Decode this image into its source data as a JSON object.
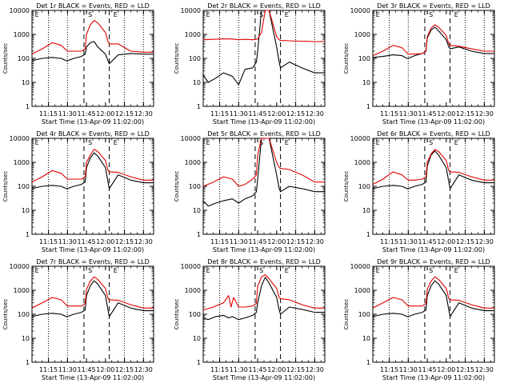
{
  "figure": {
    "x_tick_labels": [
      "11:15",
      "11:30",
      "11:45",
      "12:00",
      "12:15",
      "12:30"
    ],
    "x_label": "Start Time (13-Apr-09 11:02:00)",
    "y_label": "Counts/sec",
    "y_tick_labels": [
      "1",
      "10",
      "100",
      "1000",
      "10000"
    ],
    "marker_labels": [
      "E",
      "S",
      "E"
    ],
    "colors": {
      "events": "#000000",
      "lld": "#e00000"
    }
  },
  "chart_data": [
    {
      "type": "line",
      "title": "Det 1r BLACK = Events, RED = LLD",
      "ylim": [
        1,
        10000
      ],
      "log_y": true,
      "series": [
        {
          "name": "BLACK = Events",
          "color": "#000000",
          "x": [
            "11:02",
            "11:10",
            "11:18",
            "11:25",
            "11:29",
            "11:30",
            "11:35",
            "11:41",
            "11:44",
            "11:45",
            "11:48",
            "11:51",
            "11:54",
            "12:00",
            "12:02",
            "12:03",
            "12:10",
            "12:20",
            "12:30",
            "12:38"
          ],
          "y": [
            80,
            100,
            110,
            100,
            80,
            80,
            100,
            120,
            150,
            300,
            450,
            500,
            300,
            150,
            80,
            60,
            140,
            160,
            150,
            150
          ]
        },
        {
          "name": "RED = LLD",
          "color": "#e00000",
          "x": [
            "11:02",
            "11:10",
            "11:18",
            "11:25",
            "11:30",
            "11:35",
            "11:41",
            "11:44",
            "11:45",
            "11:48",
            "11:51",
            "11:54",
            "12:00",
            "12:02",
            "12:03",
            "12:10",
            "12:20",
            "12:30",
            "12:38"
          ],
          "y": [
            150,
            250,
            450,
            350,
            200,
            200,
            200,
            250,
            1000,
            2500,
            3800,
            3000,
            1200,
            500,
            400,
            400,
            200,
            180,
            180
          ]
        }
      ]
    },
    {
      "type": "line",
      "title": "Det 2r BLACK = Events, RED = LLD",
      "ylim": [
        1,
        10000
      ],
      "log_y": true,
      "series": [
        {
          "name": "BLACK = Events",
          "color": "#000000",
          "x": [
            "11:02",
            "11:06",
            "11:12",
            "11:18",
            "11:25",
            "11:30",
            "11:35",
            "11:41",
            "11:44",
            "11:45",
            "11:48",
            "11:51",
            "11:54",
            "12:00",
            "12:02",
            "12:03",
            "12:10",
            "12:20",
            "12:30",
            "12:38"
          ],
          "y": [
            20,
            10,
            15,
            25,
            18,
            8,
            35,
            40,
            70,
            200,
            10000,
            10000,
            10000,
            300,
            70,
            40,
            70,
            40,
            25,
            25
          ]
        },
        {
          "name": "RED = LLD",
          "color": "#e00000",
          "x": [
            "11:02",
            "11:10",
            "11:18",
            "11:25",
            "11:30",
            "11:35",
            "11:41",
            "11:44",
            "11:45",
            "11:48",
            "11:51",
            "11:54",
            "12:00",
            "12:02",
            "12:03",
            "12:10",
            "12:20",
            "12:30",
            "12:38"
          ],
          "y": [
            600,
            620,
            650,
            640,
            600,
            620,
            600,
            620,
            650,
            1200,
            10000,
            10000,
            800,
            600,
            560,
            540,
            520,
            500,
            500
          ]
        }
      ]
    },
    {
      "type": "line",
      "title": "Det 3r BLACK = Events, RED = LLD",
      "ylim": [
        1,
        10000
      ],
      "log_y": true,
      "series": [
        {
          "name": "BLACK = Events",
          "color": "#000000",
          "x": [
            "11:02",
            "11:10",
            "11:18",
            "11:25",
            "11:29",
            "11:30",
            "11:35",
            "11:41",
            "11:44",
            "11:45",
            "11:48",
            "11:51",
            "11:54",
            "12:00",
            "12:02",
            "12:03",
            "12:10",
            "12:20",
            "12:30",
            "12:38"
          ],
          "y": [
            110,
            120,
            140,
            130,
            100,
            100,
            130,
            160,
            200,
            700,
            1500,
            2000,
            1400,
            600,
            300,
            250,
            300,
            200,
            160,
            160
          ]
        },
        {
          "name": "RED = LLD",
          "color": "#e00000",
          "x": [
            "11:02",
            "11:10",
            "11:18",
            "11:25",
            "11:30",
            "11:35",
            "11:41",
            "11:44",
            "11:45",
            "11:48",
            "11:51",
            "11:54",
            "12:00",
            "12:02",
            "12:03",
            "12:10",
            "12:20",
            "12:30",
            "12:38"
          ],
          "y": [
            130,
            200,
            350,
            280,
            150,
            150,
            160,
            200,
            800,
            1800,
            2500,
            2000,
            900,
            400,
            350,
            320,
            250,
            200,
            200
          ]
        }
      ]
    },
    {
      "type": "line",
      "title": "Det 4r BLACK = Events, RED = LLD",
      "ylim": [
        1,
        10000
      ],
      "log_y": true,
      "series": [
        {
          "name": "BLACK = Events",
          "color": "#000000",
          "x": [
            "11:02",
            "11:10",
            "11:18",
            "11:25",
            "11:29",
            "11:30",
            "11:35",
            "11:41",
            "11:44",
            "11:45",
            "11:48",
            "11:51",
            "11:54",
            "12:00",
            "12:02",
            "12:03",
            "12:10",
            "12:20",
            "12:30",
            "12:38"
          ],
          "y": [
            80,
            100,
            110,
            100,
            80,
            80,
            100,
            120,
            150,
            600,
            1500,
            2500,
            1800,
            600,
            150,
            80,
            300,
            180,
            140,
            140
          ]
        },
        {
          "name": "RED = LLD",
          "color": "#e00000",
          "x": [
            "11:02",
            "11:10",
            "11:18",
            "11:25",
            "11:30",
            "11:35",
            "11:41",
            "11:44",
            "11:45",
            "11:48",
            "11:51",
            "11:54",
            "12:00",
            "12:02",
            "12:03",
            "12:10",
            "12:20",
            "12:30",
            "12:38"
          ],
          "y": [
            150,
            250,
            450,
            350,
            200,
            200,
            200,
            250,
            1000,
            2000,
            3500,
            2800,
            1200,
            450,
            400,
            380,
            250,
            180,
            180
          ]
        }
      ]
    },
    {
      "type": "line",
      "title": "Det 5r BLACK = Events, RED = LLD",
      "ylim": [
        1,
        10000
      ],
      "log_y": true,
      "series": [
        {
          "name": "BLACK = Events",
          "color": "#000000",
          "x": [
            "11:02",
            "11:06",
            "11:12",
            "11:18",
            "11:25",
            "11:30",
            "11:35",
            "11:41",
            "11:44",
            "11:45",
            "11:48",
            "11:51",
            "11:54",
            "12:00",
            "12:02",
            "12:03",
            "12:10",
            "12:20",
            "12:30",
            "12:38"
          ],
          "y": [
            25,
            15,
            20,
            25,
            30,
            20,
            30,
            40,
            60,
            200,
            10000,
            10000,
            10000,
            300,
            80,
            60,
            100,
            80,
            60,
            60
          ]
        },
        {
          "name": "RED = LLD",
          "color": "#e00000",
          "x": [
            "11:02",
            "11:10",
            "11:18",
            "11:25",
            "11:30",
            "11:35",
            "11:41",
            "11:44",
            "11:45",
            "11:48",
            "11:51",
            "11:54",
            "12:00",
            "12:02",
            "12:03",
            "12:10",
            "12:20",
            "12:30",
            "12:38"
          ],
          "y": [
            100,
            150,
            250,
            200,
            100,
            120,
            200,
            300,
            2000,
            10000,
            10000,
            10000,
            1000,
            600,
            560,
            500,
            300,
            150,
            150
          ]
        }
      ]
    },
    {
      "type": "line",
      "title": "Det 6r BLACK = Events, RED = LLD",
      "ylim": [
        1,
        10000
      ],
      "log_y": true,
      "series": [
        {
          "name": "BLACK = Events",
          "color": "#000000",
          "x": [
            "11:02",
            "11:10",
            "11:18",
            "11:25",
            "11:29",
            "11:30",
            "11:35",
            "11:41",
            "11:44",
            "11:45",
            "11:48",
            "11:51",
            "11:54",
            "12:00",
            "12:02",
            "12:03",
            "12:10",
            "12:20",
            "12:30",
            "12:38"
          ],
          "y": [
            80,
            100,
            110,
            100,
            80,
            80,
            100,
            120,
            150,
            700,
            2000,
            3000,
            2000,
            600,
            150,
            80,
            300,
            180,
            140,
            140
          ]
        },
        {
          "name": "RED = LLD",
          "color": "#e00000",
          "x": [
            "11:02",
            "11:10",
            "11:18",
            "11:25",
            "11:30",
            "11:35",
            "11:41",
            "11:44",
            "11:45",
            "11:48",
            "11:51",
            "11:54",
            "12:00",
            "12:02",
            "12:03",
            "12:10",
            "12:20",
            "12:30",
            "12:38"
          ],
          "y": [
            120,
            200,
            400,
            300,
            180,
            180,
            200,
            250,
            1000,
            2200,
            3500,
            2800,
            1200,
            450,
            400,
            380,
            250,
            180,
            180
          ]
        }
      ]
    },
    {
      "type": "line",
      "title": "Det 7r BLACK = Events, RED = LLD",
      "ylim": [
        1,
        10000
      ],
      "log_y": true,
      "series": [
        {
          "name": "BLACK = Events",
          "color": "#000000",
          "x": [
            "11:02",
            "11:10",
            "11:18",
            "11:25",
            "11:29",
            "11:30",
            "11:35",
            "11:41",
            "11:44",
            "11:45",
            "11:48",
            "11:51",
            "11:54",
            "12:00",
            "12:02",
            "12:03",
            "12:10",
            "12:20",
            "12:30",
            "12:38"
          ],
          "y": [
            80,
            100,
            110,
            100,
            80,
            80,
            100,
            120,
            150,
            600,
            1500,
            2500,
            1800,
            600,
            150,
            80,
            300,
            180,
            140,
            140
          ]
        },
        {
          "name": "RED = LLD",
          "color": "#e00000",
          "x": [
            "11:02",
            "11:10",
            "11:18",
            "11:25",
            "11:30",
            "11:35",
            "11:41",
            "11:44",
            "11:45",
            "11:48",
            "11:51",
            "11:54",
            "12:00",
            "12:02",
            "12:03",
            "12:10",
            "12:20",
            "12:30",
            "12:38"
          ],
          "y": [
            180,
            300,
            500,
            400,
            220,
            220,
            220,
            280,
            1100,
            2400,
            3600,
            2800,
            1200,
            450,
            400,
            380,
            250,
            180,
            180
          ]
        }
      ]
    },
    {
      "type": "line",
      "title": "Det 8r BLACK = Events, RED = LLD",
      "ylim": [
        1,
        10000
      ],
      "log_y": true,
      "series": [
        {
          "name": "BLACK = Events",
          "color": "#000000",
          "x": [
            "11:02",
            "11:06",
            "11:12",
            "11:18",
            "11:22",
            "11:25",
            "11:30",
            "11:35",
            "11:41",
            "11:44",
            "11:45",
            "11:48",
            "11:51",
            "11:54",
            "12:00",
            "12:02",
            "12:03",
            "12:10",
            "12:20",
            "12:30",
            "12:38"
          ],
          "y": [
            70,
            60,
            80,
            90,
            70,
            80,
            60,
            70,
            90,
            120,
            300,
            1500,
            3500,
            2000,
            500,
            150,
            100,
            200,
            160,
            120,
            120
          ]
        },
        {
          "name": "RED = LLD",
          "color": "#e00000",
          "x": [
            "11:02",
            "11:10",
            "11:18",
            "11:22",
            "11:24",
            "11:26",
            "11:30",
            "11:35",
            "11:41",
            "11:44",
            "11:45",
            "11:48",
            "11:51",
            "11:54",
            "12:00",
            "12:02",
            "12:03",
            "12:10",
            "12:20",
            "12:30",
            "12:38"
          ],
          "y": [
            150,
            200,
            300,
            600,
            200,
            500,
            200,
            200,
            220,
            280,
            1500,
            3500,
            4500,
            3000,
            1200,
            500,
            450,
            400,
            250,
            180,
            180
          ]
        }
      ]
    },
    {
      "type": "line",
      "title": "Det 9r BLACK = Events, RED = LLD",
      "ylim": [
        1,
        10000
      ],
      "log_y": true,
      "series": [
        {
          "name": "BLACK = Events",
          "color": "#000000",
          "x": [
            "11:02",
            "11:10",
            "11:18",
            "11:25",
            "11:29",
            "11:30",
            "11:35",
            "11:41",
            "11:44",
            "11:45",
            "11:48",
            "11:51",
            "11:54",
            "12:00",
            "12:02",
            "12:03",
            "12:10",
            "12:20",
            "12:30",
            "12:38"
          ],
          "y": [
            80,
            100,
            110,
            100,
            80,
            80,
            100,
            120,
            150,
            600,
            1500,
            2500,
            1800,
            600,
            150,
            80,
            300,
            180,
            140,
            140
          ]
        },
        {
          "name": "RED = LLD",
          "color": "#e00000",
          "x": [
            "11:02",
            "11:10",
            "11:18",
            "11:25",
            "11:30",
            "11:35",
            "11:41",
            "11:44",
            "11:45",
            "11:48",
            "11:51",
            "11:54",
            "12:00",
            "12:02",
            "12:03",
            "12:10",
            "12:20",
            "12:30",
            "12:38"
          ],
          "y": [
            180,
            300,
            500,
            400,
            220,
            220,
            220,
            280,
            1100,
            2400,
            3600,
            2800,
            1200,
            450,
            400,
            380,
            250,
            180,
            180
          ]
        }
      ]
    }
  ]
}
